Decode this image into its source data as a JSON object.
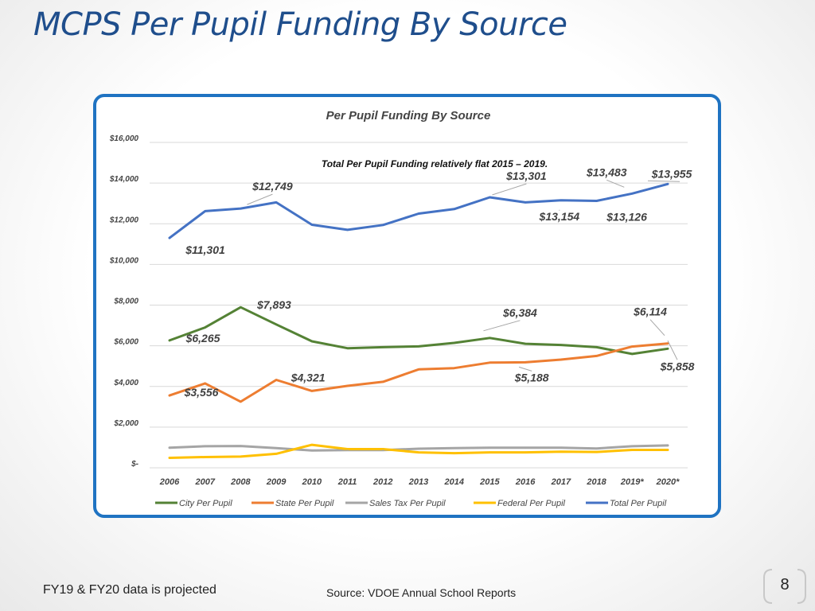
{
  "slide": {
    "title": "MCPS Per Pupil Funding By Source",
    "footnote": "FY19 & FY20 data is projected",
    "source": "Source:  VDOE Annual School Reports",
    "page_number": "8"
  },
  "colors": {
    "title": "#1f4e8c",
    "frame": "#1f73c2",
    "city": "#548235",
    "state": "#ed7d31",
    "sales": "#a5a5a5",
    "federal": "#ffc000",
    "total": "#4472c4"
  },
  "chart_data": {
    "type": "line",
    "title": "Per Pupil Funding By Source",
    "annotation": "Total Per Pupil Funding relatively flat 2015 – 2019.",
    "xlabel": "",
    "ylabel": "",
    "ylim": [
      0,
      16000
    ],
    "yticks": [
      0,
      2000,
      4000,
      6000,
      8000,
      10000,
      12000,
      14000,
      16000
    ],
    "ytick_labels": [
      "$-",
      "$2,000",
      "$4,000",
      "$6,000",
      "$8,000",
      "$10,000",
      "$12,000",
      "$14,000",
      "$16,000"
    ],
    "grid": true,
    "legend_position": "bottom",
    "categories": [
      "2006",
      "2007",
      "2008",
      "2009",
      "2010",
      "2011",
      "2012",
      "2013",
      "2014",
      "2015",
      "2016",
      "2017",
      "2018",
      "2019*",
      "2020*"
    ],
    "series": [
      {
        "name": "City Per Pupil",
        "color": "#548235",
        "values": [
          6265,
          6900,
          7893,
          7050,
          6220,
          5880,
          5930,
          5970,
          6140,
          6384,
          6100,
          6040,
          5930,
          5600,
          5858
        ]
      },
      {
        "name": "State Per Pupil",
        "color": "#ed7d31",
        "values": [
          3556,
          4150,
          3250,
          4321,
          3780,
          4030,
          4230,
          4840,
          4900,
          5170,
          5188,
          5320,
          5500,
          5960,
          6114
        ]
      },
      {
        "name": "Sales Tax Per Pupil",
        "color": "#a5a5a5",
        "values": [
          990,
          1060,
          1070,
          970,
          850,
          870,
          870,
          940,
          970,
          990,
          990,
          990,
          950,
          1060,
          1100
        ]
      },
      {
        "name": "Federal Per Pupil",
        "color": "#ffc000",
        "values": [
          490,
          530,
          550,
          690,
          1130,
          920,
          920,
          760,
          720,
          760,
          760,
          790,
          780,
          880,
          880
        ]
      },
      {
        "name": "Total Per Pupil",
        "color": "#4472c4",
        "values": [
          11301,
          12620,
          12749,
          13050,
          11950,
          11700,
          11940,
          12500,
          12720,
          13301,
          13050,
          13154,
          13126,
          13483,
          13955
        ]
      }
    ],
    "data_labels": [
      {
        "series": 4,
        "index": 0,
        "text": "$11,301"
      },
      {
        "series": 4,
        "index": 2,
        "text": "$12,749"
      },
      {
        "series": 4,
        "index": 9,
        "text": "$13,301"
      },
      {
        "series": 4,
        "index": 11,
        "text": "$13,154"
      },
      {
        "series": 4,
        "index": 12,
        "text": "$13,126"
      },
      {
        "series": 4,
        "index": 13,
        "text": "$13,483"
      },
      {
        "series": 4,
        "index": 14,
        "text": "$13,955"
      },
      {
        "series": 0,
        "index": 0,
        "text": "$6,265"
      },
      {
        "series": 0,
        "index": 2,
        "text": "$7,893"
      },
      {
        "series": 0,
        "index": 9,
        "text": "$6,384"
      },
      {
        "series": 0,
        "index": 14,
        "text": "$5,858"
      },
      {
        "series": 1,
        "index": 0,
        "text": "$3,556"
      },
      {
        "series": 1,
        "index": 3,
        "text": "$4,321"
      },
      {
        "series": 1,
        "index": 10,
        "text": "$5,188"
      },
      {
        "series": 1,
        "index": 14,
        "text": "$6,114"
      }
    ]
  }
}
